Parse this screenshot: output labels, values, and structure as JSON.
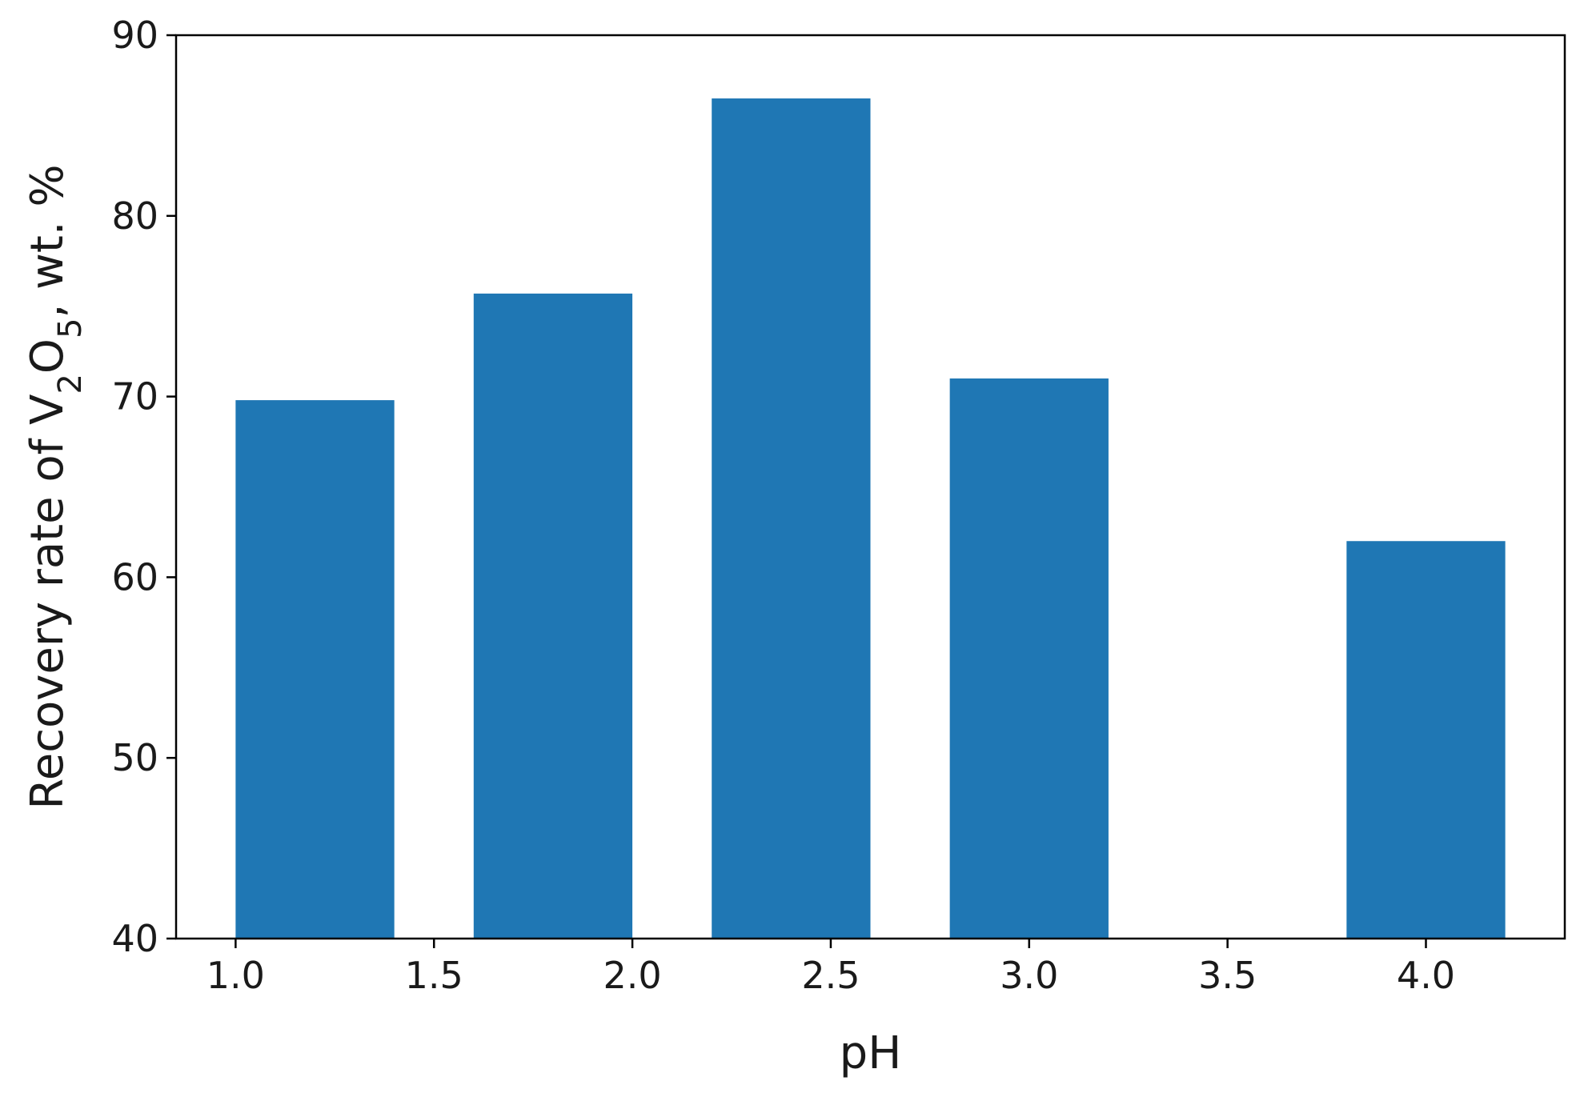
{
  "chart_data": {
    "type": "bar",
    "title": "",
    "xlabel": "pH",
    "ylabel": {
      "prefix": "Recovery rate of  V",
      "sub1": "2",
      "mid": "O",
      "sub2": "5",
      "suffix": ", wt. %"
    },
    "x": [
      1.0,
      1.6,
      2.2,
      2.8,
      3.8
    ],
    "values": [
      69.8,
      75.7,
      86.5,
      71.0,
      62.0
    ],
    "bar_width": 0.4,
    "xlim": [
      0.85,
      4.35
    ],
    "ylim": [
      40,
      90
    ],
    "xticks": [
      1.0,
      1.5,
      2.0,
      2.5,
      3.0,
      3.5,
      4.0
    ],
    "xtick_labels": [
      "1.0",
      "1.5",
      "2.0",
      "2.5",
      "3.0",
      "3.5",
      "4.0"
    ],
    "yticks": [
      40,
      50,
      60,
      70,
      80,
      90
    ],
    "ytick_labels": [
      "40",
      "50",
      "60",
      "70",
      "80",
      "90"
    ],
    "bar_color": "#1f77b4",
    "grid": false,
    "legend": "none"
  }
}
